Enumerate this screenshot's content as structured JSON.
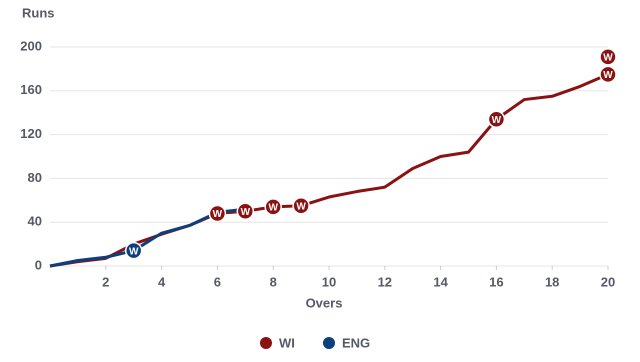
{
  "chart_data": {
    "type": "line",
    "y_axis_label": "Runs",
    "x_axis_label": "Overs",
    "marker_label": "W",
    "xlim": [
      0,
      20
    ],
    "ylim": [
      0,
      200
    ],
    "xticks": [
      2,
      4,
      6,
      8,
      10,
      12,
      14,
      16,
      18,
      20
    ],
    "yticks": [
      0,
      40,
      80,
      120,
      160,
      200
    ],
    "grid": true,
    "legend": "bottom",
    "x": [
      0,
      1,
      2,
      3,
      4,
      5,
      6,
      7,
      8,
      9,
      10,
      11,
      12,
      13,
      14,
      15,
      16,
      17,
      18,
      19,
      20
    ],
    "series": [
      {
        "name": "WI",
        "color": "#8a1212",
        "values": [
          0,
          4,
          7,
          20,
          29,
          37,
          48,
          50,
          54,
          55,
          63,
          68,
          72,
          89,
          100,
          104,
          134,
          152,
          155,
          164,
          175
        ],
        "wickets": {
          "x": [
            6,
            7,
            8,
            9,
            16,
            20,
            20
          ],
          "values": [
            48,
            50,
            54,
            55,
            134,
            175,
            191
          ]
        }
      },
      {
        "name": "ENG",
        "color": "#0d3f7c",
        "values": [
          0,
          5,
          8,
          14,
          30,
          37,
          49,
          52,
          null,
          null,
          null,
          null,
          null,
          null,
          null,
          null,
          null,
          null,
          null,
          null,
          null
        ],
        "wickets": {
          "x": [
            3
          ],
          "values": [
            14
          ]
        }
      }
    ]
  }
}
